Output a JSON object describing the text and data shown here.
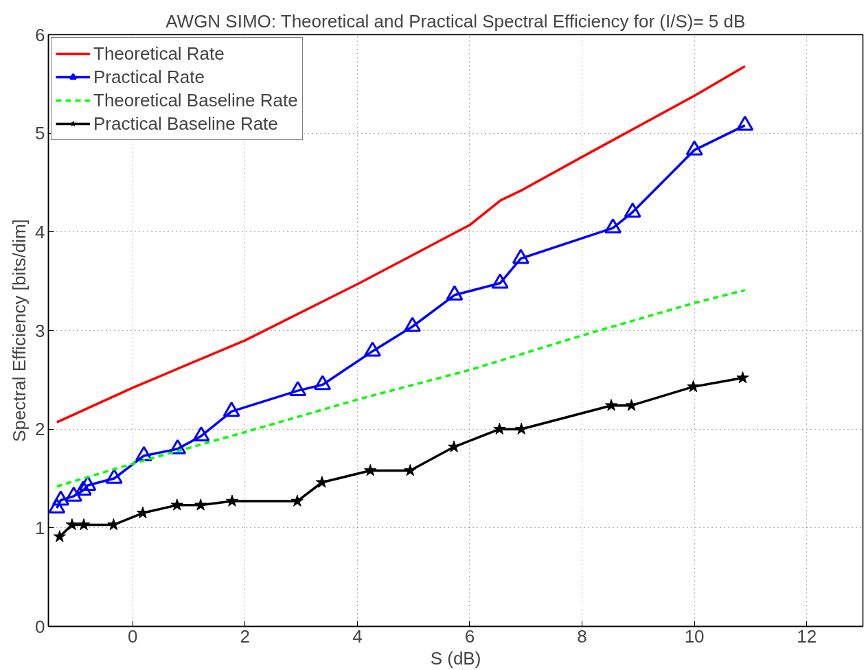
{
  "chart_data": {
    "type": "line",
    "title": "AWGN SIMO: Theoretical and Practical Spectral Efficiency for (I/S)= 5 dB",
    "xlabel": "S (dB)",
    "ylabel": "Spectral Efficiency [bits/dim]",
    "xlim": [
      -1.5,
      13
    ],
    "ylim": [
      0,
      6
    ],
    "xticks": [
      0,
      2,
      4,
      6,
      8,
      10,
      12
    ],
    "yticks": [
      0,
      1,
      2,
      3,
      4,
      5,
      6
    ],
    "grid": true,
    "legend": "top left",
    "series": [
      {
        "name": "Theoretical Rate",
        "color": "#ff0000",
        "marker": "none",
        "line_style": "solid",
        "x": [
          -1.35,
          0,
          2,
          4,
          6,
          6.55,
          6.95,
          8,
          10,
          10.9
        ],
        "values": [
          2.07,
          2.42,
          2.9,
          3.47,
          4.07,
          4.32,
          4.43,
          4.76,
          5.38,
          5.68
        ]
      },
      {
        "name": "Practical Rate",
        "color": "#0000ff",
        "marker": "triangle",
        "line_style": "solid",
        "x": [
          -1.35,
          -1.28,
          -1.05,
          -0.88,
          -0.8,
          -0.33,
          0.2,
          0.8,
          1.22,
          1.76,
          2.94,
          3.38,
          4.27,
          4.98,
          5.73,
          6.54,
          6.91,
          8.55,
          8.9,
          10.0,
          10.9
        ],
        "values": [
          1.2,
          1.28,
          1.32,
          1.38,
          1.43,
          1.5,
          1.73,
          1.8,
          1.93,
          2.18,
          2.39,
          2.45,
          2.79,
          3.04,
          3.36,
          3.48,
          3.73,
          4.04,
          4.2,
          4.83,
          5.08
        ]
      },
      {
        "name": "Theoretical Baseline Rate",
        "color": "#00ff00",
        "marker": "none",
        "line_style": "dashed",
        "x": [
          -1.35,
          0,
          2,
          4,
          6,
          8,
          10,
          10.9
        ],
        "values": [
          1.42,
          1.65,
          1.97,
          2.3,
          2.6,
          2.95,
          3.28,
          3.41
        ]
      },
      {
        "name": "Practical Baseline Rate",
        "color": "#000000",
        "marker": "star",
        "line_style": "solid",
        "x": [
          -1.3,
          -1.08,
          -0.87,
          -0.34,
          0.18,
          0.79,
          1.21,
          1.77,
          2.93,
          3.37,
          4.23,
          4.94,
          5.72,
          6.53,
          6.92,
          8.52,
          8.88,
          9.98,
          10.86
        ],
        "values": [
          0.91,
          1.03,
          1.03,
          1.03,
          1.15,
          1.23,
          1.23,
          1.27,
          1.27,
          1.46,
          1.58,
          1.58,
          1.82,
          2.0,
          2.0,
          2.24,
          2.24,
          2.43,
          2.52
        ]
      }
    ]
  }
}
